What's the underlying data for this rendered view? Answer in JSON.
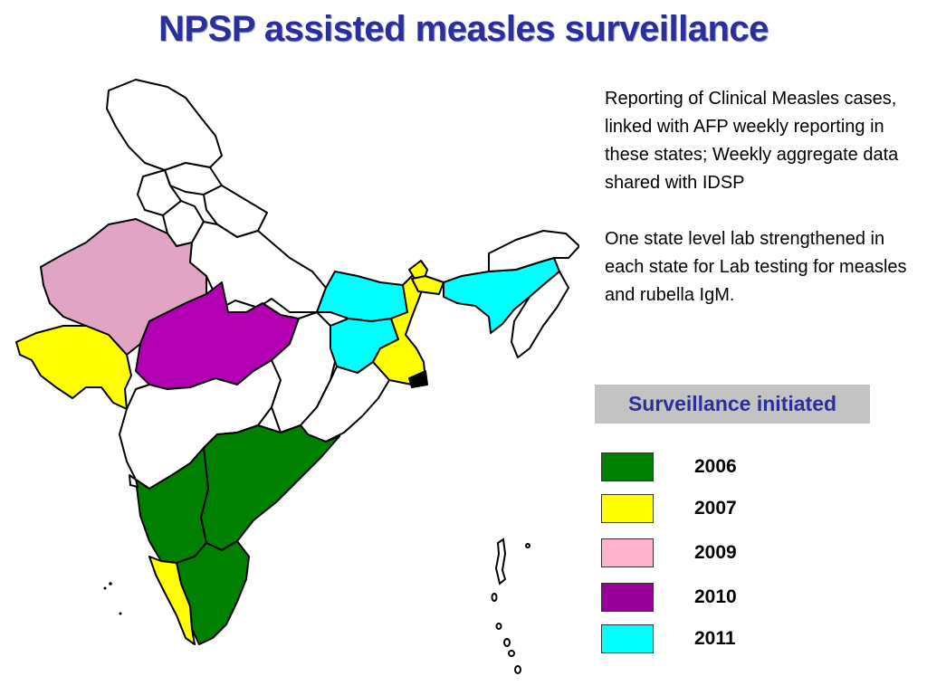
{
  "title": "NPSP assisted measles surveillance",
  "description": [
    "Reporting of Clinical Measles cases, linked with AFP weekly reporting in these states; Weekly aggregate data shared with IDSP",
    "One state level lab strengthened in each state for Lab testing for measles and rubella IgM."
  ],
  "legend": {
    "title": "Surveillance initiated",
    "items": [
      {
        "year": "2006",
        "color": "#008000"
      },
      {
        "year": "2007",
        "color": "#ffff00"
      },
      {
        "year": "2009",
        "color": "#ffb2cc"
      },
      {
        "year": "2010",
        "color": "#990099"
      },
      {
        "year": "2011",
        "color": "#00ffff"
      }
    ]
  },
  "map_colors": {
    "unassigned": "#ffffff",
    "green": "#008000",
    "yellow": "#ffff00",
    "pink": "#e2a4c4",
    "purple": "#b300b3",
    "cyan": "#00ffff",
    "outline": "#000000"
  }
}
